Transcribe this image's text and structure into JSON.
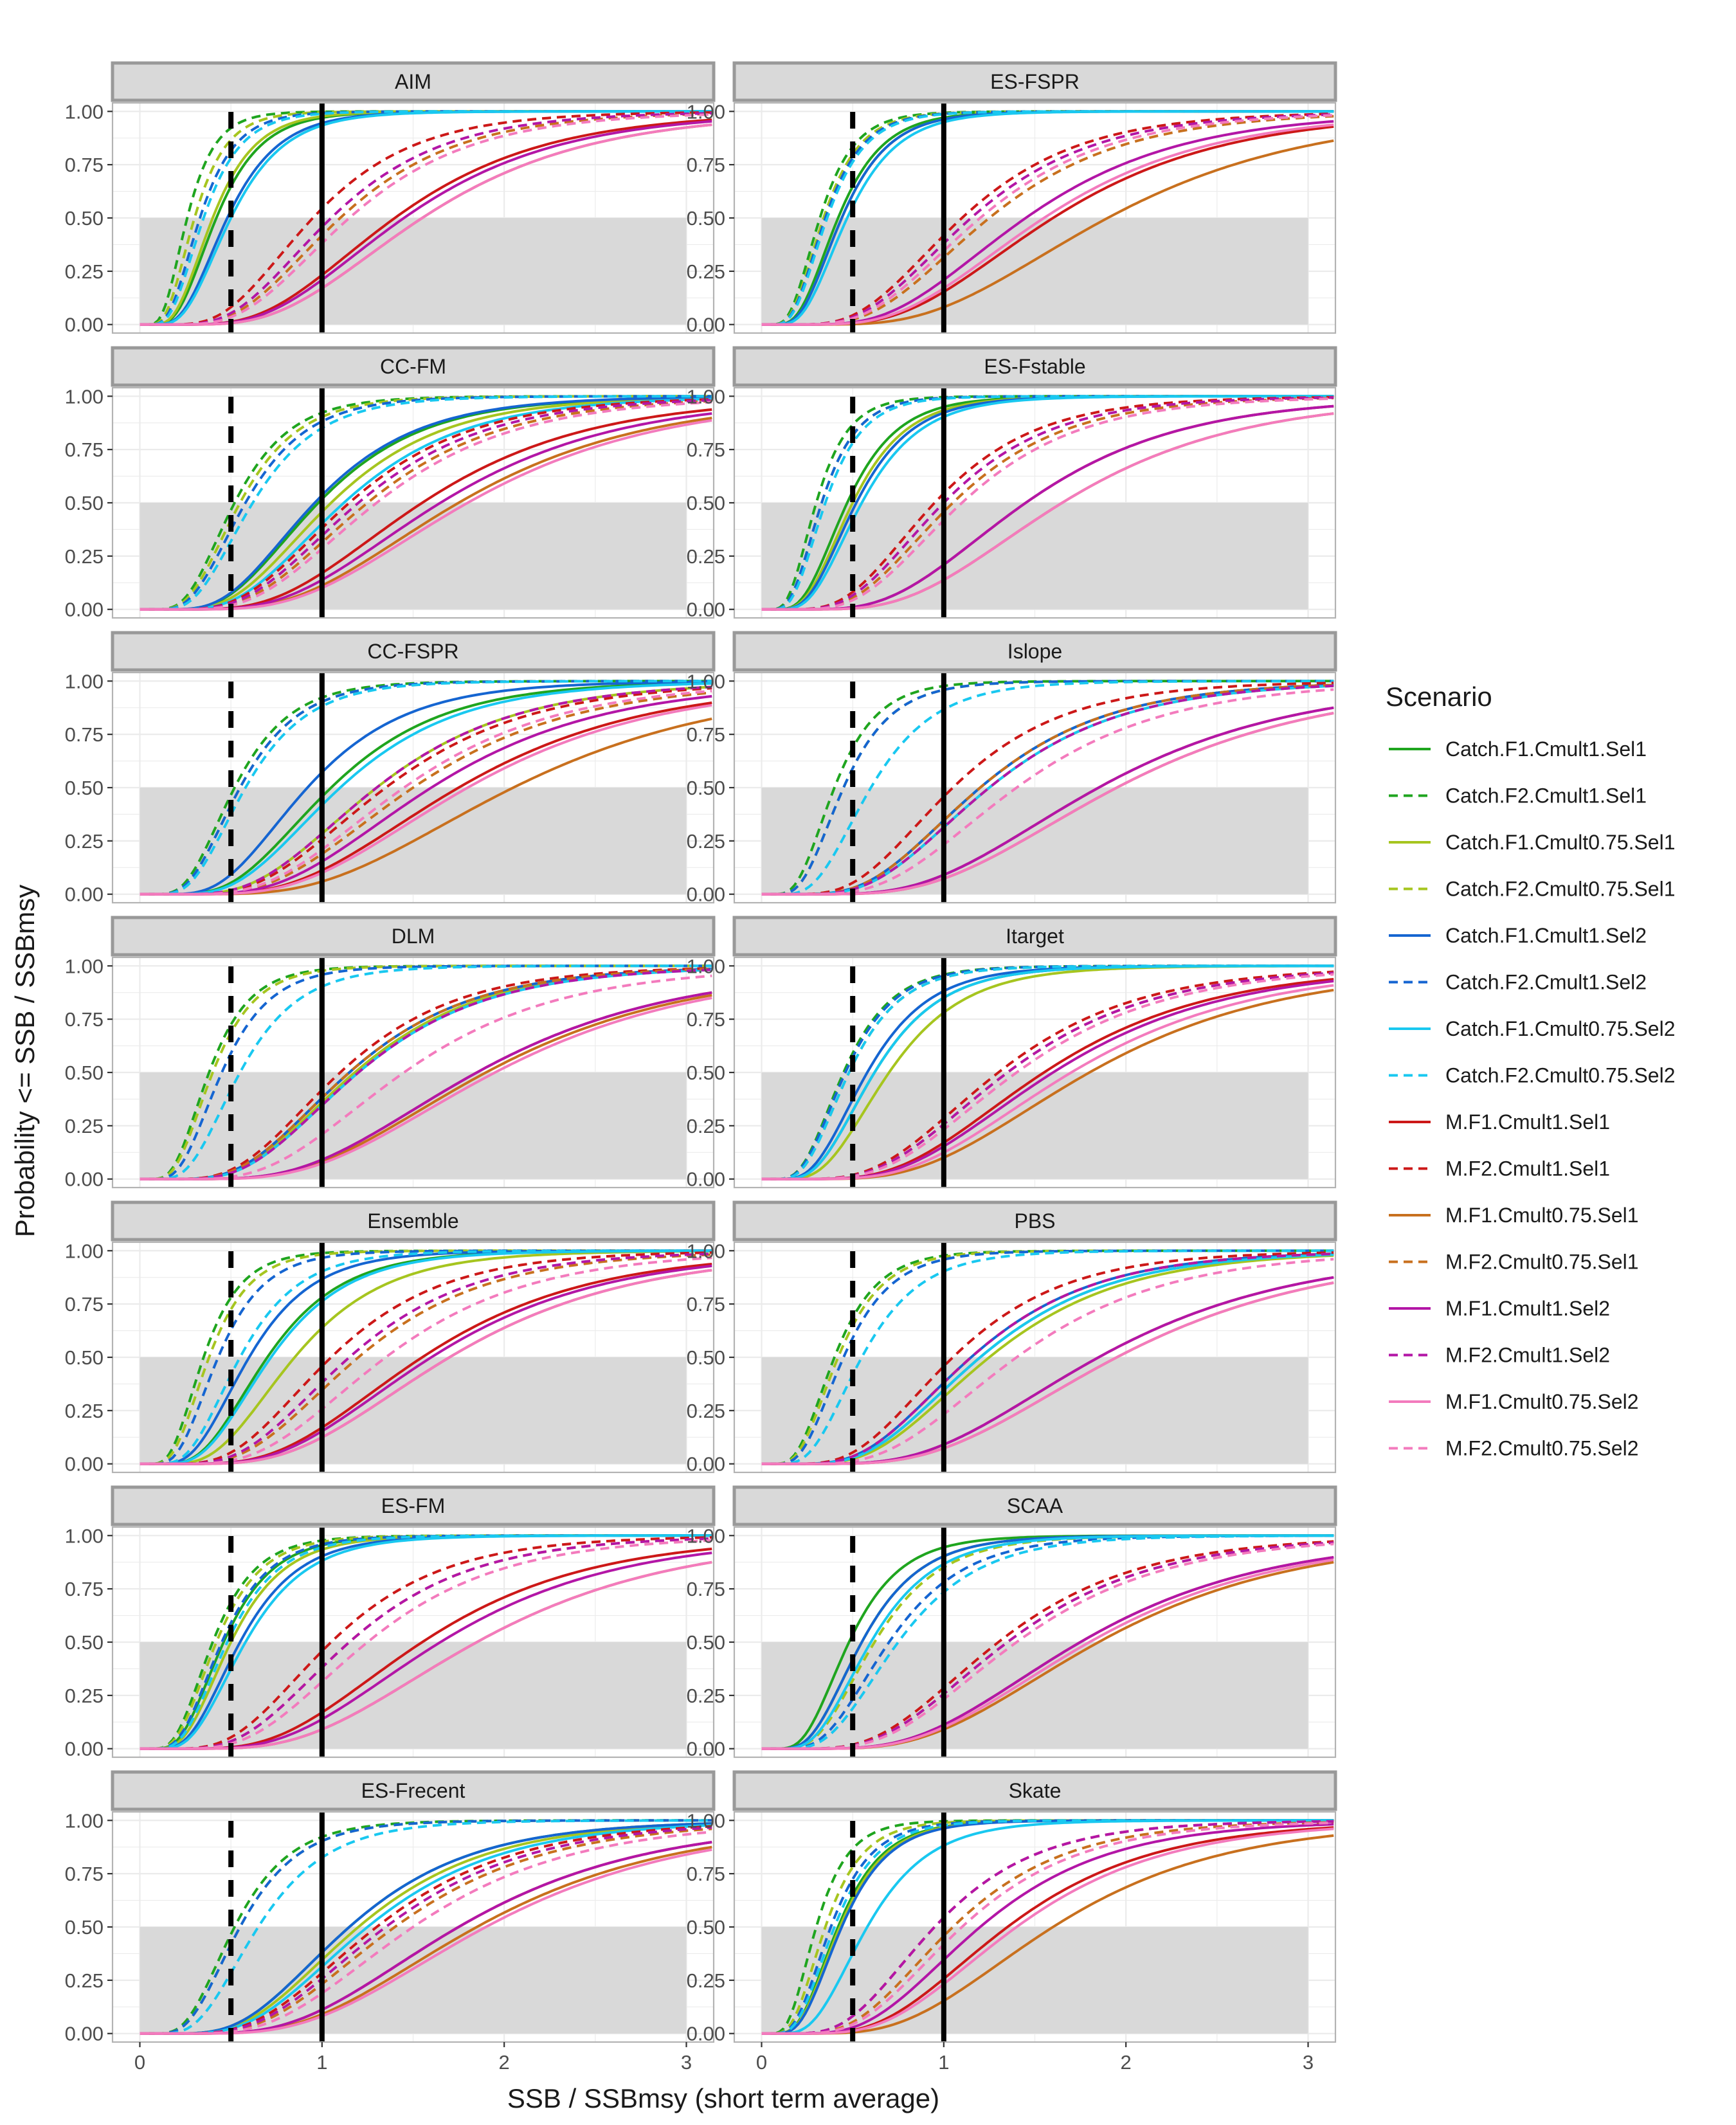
{
  "chart_data": {
    "type": "line",
    "facet_order": [
      "AIM",
      "ES-FSPR",
      "CC-FM",
      "ES-Fstable",
      "CC-FSPR",
      "Islope",
      "DLM",
      "Itarget",
      "Ensemble",
      "PBS",
      "ES-FM",
      "SCAA",
      "ES-Frecent",
      "Skate"
    ],
    "xlabel": "SSB / SSBmsy (short term average)",
    "ylabel": "Probability <= SSB / SSBmsy",
    "xticks": [
      0,
      1,
      2,
      3
    ],
    "xlim": [
      -0.15,
      3.15
    ],
    "ylim": [
      -0.04,
      1.04
    ],
    "yticks": [
      "0.00",
      "0.25",
      "0.50",
      "0.75",
      "1.00"
    ],
    "reference_lines": {
      "dashed_x": 0.5,
      "solid_x": 1.0
    },
    "shaded_region": {
      "x": [
        0,
        3
      ],
      "y": [
        0,
        0.5
      ]
    },
    "legend": {
      "title": "Scenario",
      "position": "right",
      "items": [
        {
          "name": "Catch.F1.Cmult1.Sel1",
          "color": "#1fa51f",
          "dash": "solid"
        },
        {
          "name": "Catch.F2.Cmult1.Sel1",
          "color": "#1fa51f",
          "dash": "dashed"
        },
        {
          "name": "Catch.F1.Cmult0.75.Sel1",
          "color": "#a6c51f",
          "dash": "solid"
        },
        {
          "name": "Catch.F2.Cmult0.75.Sel1",
          "color": "#a6c51f",
          "dash": "dashed"
        },
        {
          "name": "Catch.F1.Cmult1.Sel2",
          "color": "#1565d1",
          "dash": "solid"
        },
        {
          "name": "Catch.F2.Cmult1.Sel2",
          "color": "#1565d1",
          "dash": "dashed"
        },
        {
          "name": "Catch.F1.Cmult0.75.Sel2",
          "color": "#19c8f0",
          "dash": "solid"
        },
        {
          "name": "Catch.F2.Cmult0.75.Sel2",
          "color": "#19c8f0",
          "dash": "dashed"
        },
        {
          "name": "M.F1.Cmult1.Sel1",
          "color": "#cc1818",
          "dash": "solid"
        },
        {
          "name": "M.F2.Cmult1.Sel1",
          "color": "#cc1818",
          "dash": "dashed"
        },
        {
          "name": "M.F1.Cmult0.75.Sel1",
          "color": "#c8701e",
          "dash": "solid"
        },
        {
          "name": "M.F2.Cmult0.75.Sel1",
          "color": "#c8701e",
          "dash": "dashed"
        },
        {
          "name": "M.F1.Cmult1.Sel2",
          "color": "#b316a6",
          "dash": "solid"
        },
        {
          "name": "M.F2.Cmult1.Sel2",
          "color": "#b316a6",
          "dash": "dashed"
        },
        {
          "name": "M.F1.Cmult0.75.Sel2",
          "color": "#f37bbd",
          "dash": "solid"
        },
        {
          "name": "M.F2.Cmult0.75.Sel2",
          "color": "#f37bbd",
          "dash": "dashed"
        }
      ]
    },
    "panels": [
      {
        "title": "AIM",
        "curve_medians": [
          0.42,
          0.26,
          0.4,
          0.3,
          0.48,
          0.33,
          0.5,
          0.35,
          1.4,
          0.95,
          1.55,
          1.1,
          1.45,
          1.05,
          1.55,
          1.15
        ]
      },
      {
        "title": "ES-FSPR",
        "curve_medians": [
          0.42,
          0.32,
          0.44,
          0.34,
          0.44,
          0.35,
          0.47,
          0.36,
          1.6,
          1.1,
          1.9,
          1.25,
          1.45,
          1.15,
          1.55,
          1.2
        ]
      },
      {
        "title": "CC-FM",
        "curve_medians": [
          0.98,
          0.52,
          1.05,
          0.55,
          0.96,
          0.58,
          1.12,
          0.62,
          1.55,
          1.15,
          1.75,
          1.25,
          1.65,
          1.2,
          1.8,
          1.3
        ]
      },
      {
        "title": "ES-Fstable",
        "curve_medians": [
          0.47,
          0.3,
          0.5,
          0.33,
          0.52,
          0.33,
          0.55,
          0.35,
          1.45,
          0.95,
          1.65,
          1.05,
          1.45,
          1.0,
          1.65,
          1.1
        ]
      },
      {
        "title": "CC-FSPR",
        "curve_medians": [
          1.05,
          0.52,
          1.3,
          0.55,
          0.92,
          0.55,
          1.1,
          0.58,
          1.75,
          1.35,
          2.05,
          1.5,
          1.6,
          1.3,
          1.8,
          1.45
        ]
      },
      {
        "title": "Islope",
        "curve_medians": [
          1.2,
          0.4,
          1.25,
          0.45,
          1.2,
          0.45,
          1.25,
          0.6,
          1.85,
          1.05,
          1.95,
          1.2,
          1.85,
          1.25,
          1.95,
          1.4
        ]
      },
      {
        "title": "DLM",
        "curve_medians": [
          1.15,
          0.38,
          1.18,
          0.4,
          1.15,
          0.45,
          1.2,
          0.55,
          1.85,
          1.1,
          1.9,
          1.15,
          1.85,
          1.2,
          1.95,
          1.45
        ]
      },
      {
        "title": "Itarget",
        "curve_medians": [
          0.62,
          0.45,
          0.7,
          0.48,
          0.58,
          0.46,
          0.62,
          0.48,
          1.55,
          1.3,
          1.8,
          1.35,
          1.6,
          1.35,
          1.7,
          1.4
        ]
      },
      {
        "title": "Ensemble",
        "curve_medians": [
          0.7,
          0.35,
          0.85,
          0.38,
          0.6,
          0.43,
          0.72,
          0.55,
          1.55,
          1.05,
          1.7,
          1.2,
          1.6,
          1.15,
          1.7,
          1.35
        ]
      },
      {
        "title": "PBS",
        "curve_medians": [
          1.2,
          0.4,
          1.25,
          0.42,
          1.15,
          0.45,
          1.2,
          0.55,
          1.85,
          1.05,
          1.95,
          1.15,
          1.85,
          1.15,
          1.95,
          1.4
        ]
      },
      {
        "title": "ES-FM",
        "curve_medians": [
          0.46,
          0.4,
          0.5,
          0.42,
          0.55,
          0.45,
          0.58,
          0.48,
          1.55,
          1.05,
          1.85,
          1.15,
          1.65,
          1.15,
          1.85,
          1.25
        ]
      },
      {
        "title": "SCAA",
        "curve_medians": [
          0.48,
          0.55,
          0.55,
          0.62,
          0.55,
          0.7,
          0.6,
          0.75,
          1.75,
          1.3,
          1.85,
          1.35,
          1.75,
          1.35,
          1.8,
          1.4
        ]
      },
      {
        "title": "ES-Frecent",
        "curve_medians": [
          1.15,
          0.52,
          1.2,
          0.55,
          1.15,
          0.55,
          1.25,
          0.65,
          1.75,
          1.3,
          1.85,
          1.4,
          1.75,
          1.35,
          1.9,
          1.5
        ]
      },
      {
        "title": "Skate",
        "curve_medians": [
          0.42,
          0.3,
          0.43,
          0.35,
          0.44,
          0.38,
          0.58,
          0.4,
          1.35,
          0.95,
          1.6,
          1.05,
          1.2,
          0.95,
          1.4,
          1.1
        ]
      }
    ]
  }
}
